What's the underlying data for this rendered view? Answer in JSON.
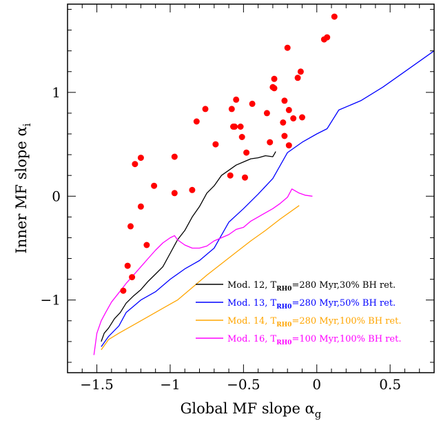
{
  "chart_data": {
    "type": "line",
    "xlim": [
      -1.7,
      0.8
    ],
    "ylim": [
      -1.7,
      1.85
    ],
    "grid": false,
    "legend_position": "bottom-right",
    "xlabel": {
      "main": "Global MF slope α",
      "sub": "g"
    },
    "ylabel": {
      "main": "Inner MF slope α",
      "sub": "i"
    },
    "x_ticks": [
      {
        "value": -1.5,
        "label": "−1.5"
      },
      {
        "value": -1.0,
        "label": "−1"
      },
      {
        "value": -0.5,
        "label": "−0.5"
      },
      {
        "value": 0.0,
        "label": "0"
      },
      {
        "value": 0.5,
        "label": "0.5"
      }
    ],
    "y_ticks": [
      {
        "value": -1,
        "label": "−1"
      },
      {
        "value": 0,
        "label": "0"
      },
      {
        "value": 1,
        "label": "1"
      }
    ],
    "x_minor_step": 0.1,
    "y_minor_step": 0.2,
    "scatter": {
      "color": "#ff0000",
      "points": [
        [
          0.12,
          1.73
        ],
        [
          0.07,
          1.53
        ],
        [
          0.05,
          1.51
        ],
        [
          -0.2,
          1.43
        ],
        [
          -0.11,
          1.2
        ],
        [
          -0.13,
          1.14
        ],
        [
          -0.29,
          1.13
        ],
        [
          -0.3,
          1.05
        ],
        [
          -0.29,
          1.04
        ],
        [
          -0.22,
          0.92
        ],
        [
          -0.44,
          0.89
        ],
        [
          -0.55,
          0.93
        ],
        [
          -0.58,
          0.84
        ],
        [
          -0.76,
          0.84
        ],
        [
          -0.19,
          0.83
        ],
        [
          -0.34,
          0.8
        ],
        [
          -0.23,
          0.71
        ],
        [
          -0.16,
          0.75
        ],
        [
          -0.1,
          0.76
        ],
        [
          -0.82,
          0.72
        ],
        [
          -0.57,
          0.67
        ],
        [
          -0.52,
          0.67
        ],
        [
          -0.51,
          0.57
        ],
        [
          -0.56,
          0.67
        ],
        [
          -0.22,
          0.58
        ],
        [
          -0.69,
          0.5
        ],
        [
          -0.32,
          0.52
        ],
        [
          -0.19,
          0.49
        ],
        [
          -0.48,
          0.42
        ],
        [
          -1.24,
          0.31
        ],
        [
          -1.2,
          0.37
        ],
        [
          -0.97,
          0.38
        ],
        [
          -0.59,
          0.2
        ],
        [
          -0.49,
          0.18
        ],
        [
          -1.11,
          0.1
        ],
        [
          -0.97,
          0.03
        ],
        [
          -0.85,
          0.06
        ],
        [
          -1.2,
          -0.1
        ],
        [
          -1.16,
          -0.47
        ],
        [
          -1.27,
          -0.29
        ],
        [
          -1.29,
          -0.67
        ],
        [
          -1.26,
          -0.78
        ],
        [
          -1.32,
          -0.91
        ]
      ]
    },
    "series": [
      {
        "label": "Mod. 12, T",
        "sub": "RH0",
        "rest": "=280 Myr,30% BH ret.",
        "color": "#000000",
        "points": [
          [
            -1.47,
            -1.4
          ],
          [
            -1.45,
            -1.32
          ],
          [
            -1.42,
            -1.27
          ],
          [
            -1.38,
            -1.18
          ],
          [
            -1.34,
            -1.12
          ],
          [
            -1.3,
            -1.03
          ],
          [
            -1.25,
            -0.96
          ],
          [
            -1.2,
            -0.9
          ],
          [
            -1.15,
            -0.82
          ],
          [
            -1.1,
            -0.75
          ],
          [
            -1.05,
            -0.68
          ],
          [
            -1.0,
            -0.55
          ],
          [
            -0.95,
            -0.42
          ],
          [
            -0.9,
            -0.33
          ],
          [
            -0.85,
            -0.2
          ],
          [
            -0.8,
            -0.1
          ],
          [
            -0.75,
            0.03
          ],
          [
            -0.7,
            0.1
          ],
          [
            -0.65,
            0.2
          ],
          [
            -0.6,
            0.25
          ],
          [
            -0.55,
            0.3
          ],
          [
            -0.5,
            0.33
          ],
          [
            -0.45,
            0.36
          ],
          [
            -0.4,
            0.37
          ],
          [
            -0.35,
            0.39
          ],
          [
            -0.3,
            0.38
          ],
          [
            -0.28,
            0.43
          ]
        ]
      },
      {
        "label": "Mod. 13, T",
        "sub": "RH0",
        "rest": "=280 Myr,50% BH ret.",
        "color": "#0000ff",
        "points": [
          [
            -1.47,
            -1.45
          ],
          [
            -1.42,
            -1.35
          ],
          [
            -1.35,
            -1.25
          ],
          [
            -1.3,
            -1.12
          ],
          [
            -1.25,
            -1.06
          ],
          [
            -1.2,
            -1.0
          ],
          [
            -1.1,
            -0.92
          ],
          [
            -1.0,
            -0.8
          ],
          [
            -0.9,
            -0.7
          ],
          [
            -0.8,
            -0.62
          ],
          [
            -0.7,
            -0.5
          ],
          [
            -0.6,
            -0.25
          ],
          [
            -0.5,
            -0.12
          ],
          [
            -0.4,
            0.02
          ],
          [
            -0.3,
            0.17
          ],
          [
            -0.2,
            0.42
          ],
          [
            -0.1,
            0.52
          ],
          [
            0.0,
            0.6
          ],
          [
            0.07,
            0.65
          ],
          [
            0.15,
            0.83
          ],
          [
            0.3,
            0.92
          ],
          [
            0.45,
            1.05
          ],
          [
            0.6,
            1.2
          ],
          [
            0.8,
            1.4
          ]
        ]
      },
      {
        "label": "Mod. 14, T",
        "sub": "RH0",
        "rest": "=280 Myr,100% BH ret.",
        "color": "#ffa500",
        "points": [
          [
            -1.47,
            -1.48
          ],
          [
            -1.42,
            -1.38
          ],
          [
            -1.35,
            -1.32
          ],
          [
            -1.25,
            -1.24
          ],
          [
            -1.15,
            -1.16
          ],
          [
            -1.05,
            -1.08
          ],
          [
            -0.95,
            -1.0
          ],
          [
            -0.85,
            -0.88
          ],
          [
            -0.75,
            -0.76
          ],
          [
            -0.65,
            -0.65
          ],
          [
            -0.55,
            -0.54
          ],
          [
            -0.45,
            -0.43
          ],
          [
            -0.35,
            -0.33
          ],
          [
            -0.25,
            -0.22
          ],
          [
            -0.12,
            -0.09
          ]
        ]
      },
      {
        "label": "Mod. 16, T",
        "sub": "RH0",
        "rest": "=100 Myr,100% BH ret.",
        "color": "#ff00ff",
        "points": [
          [
            -1.52,
            -1.53
          ],
          [
            -1.5,
            -1.32
          ],
          [
            -1.47,
            -1.2
          ],
          [
            -1.44,
            -1.12
          ],
          [
            -1.4,
            -1.02
          ],
          [
            -1.35,
            -0.93
          ],
          [
            -1.3,
            -0.84
          ],
          [
            -1.25,
            -0.76
          ],
          [
            -1.2,
            -0.68
          ],
          [
            -1.15,
            -0.6
          ],
          [
            -1.1,
            -0.52
          ],
          [
            -1.05,
            -0.45
          ],
          [
            -1.0,
            -0.4
          ],
          [
            -0.97,
            -0.38
          ],
          [
            -0.95,
            -0.42
          ],
          [
            -0.9,
            -0.47
          ],
          [
            -0.85,
            -0.5
          ],
          [
            -0.8,
            -0.5
          ],
          [
            -0.75,
            -0.48
          ],
          [
            -0.7,
            -0.43
          ],
          [
            -0.65,
            -0.4
          ],
          [
            -0.6,
            -0.37
          ],
          [
            -0.55,
            -0.32
          ],
          [
            -0.5,
            -0.3
          ],
          [
            -0.45,
            -0.24
          ],
          [
            -0.4,
            -0.2
          ],
          [
            -0.35,
            -0.16
          ],
          [
            -0.3,
            -0.12
          ],
          [
            -0.25,
            -0.07
          ],
          [
            -0.2,
            -0.01
          ],
          [
            -0.17,
            0.07
          ],
          [
            -0.12,
            0.03
          ],
          [
            -0.08,
            0.01
          ],
          [
            -0.03,
            0.0
          ]
        ]
      }
    ]
  }
}
